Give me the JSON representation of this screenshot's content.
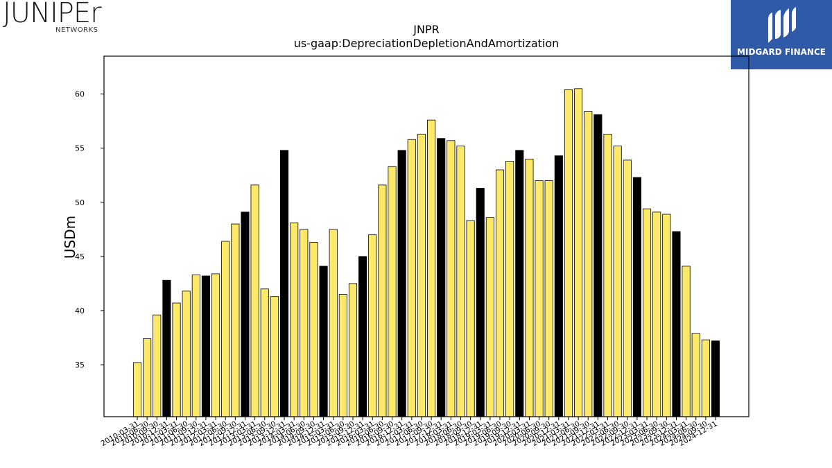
{
  "logos": {
    "left_brand": "JUNIPEr",
    "left_sub": "NETWORKS",
    "right_brand": "MIDGARD FINANCE"
  },
  "colors": {
    "bar_default": "#fce96a",
    "bar_highlight": "#000000",
    "bar_edge": "#000000",
    "logo_right_bg": "#2f5aa8"
  },
  "chart_data": {
    "type": "bar",
    "title": "JNPR",
    "subtitle": "us-gaap:DepreciationDepletionAndAmortization",
    "xlabel": "",
    "ylabel": "USDm",
    "ylim": [
      30.2,
      63.5
    ],
    "yticks": [
      35,
      40,
      45,
      50,
      55,
      60
    ],
    "grid": false,
    "categories": [
      "2010-03-31",
      "2010-06-30",
      "2010-09-30",
      "2010-12-31",
      "2011-03-31",
      "2011-06-30",
      "2011-09-30",
      "2011-12-31",
      "2012-03-31",
      "2012-06-30",
      "2012-09-30",
      "2012-12-31",
      "2013-03-31",
      "2013-06-30",
      "2013-09-30",
      "2013-12-31",
      "2014-03-31",
      "2014-06-30",
      "2014-09-30",
      "2014-12-31",
      "2015-03-31",
      "2015-06-30",
      "2015-09-30",
      "2015-12-31",
      "2016-03-31",
      "2016-06-30",
      "2016-09-30",
      "2016-12-31",
      "2017-03-31",
      "2017-06-30",
      "2017-09-30",
      "2017-12-31",
      "2018-03-31",
      "2018-06-30",
      "2018-09-30",
      "2018-12-31",
      "2019-03-31",
      "2019-06-30",
      "2019-09-30",
      "2019-12-31",
      "2020-03-31",
      "2020-06-30",
      "2020-09-30",
      "2020-12-31",
      "2021-03-31",
      "2021-06-30",
      "2021-09-30",
      "2021-12-31",
      "2022-03-31",
      "2022-06-30",
      "2022-09-30",
      "2022-12-31",
      "2023-03-31",
      "2023-06-30",
      "2023-09-30",
      "2023-12-31",
      "2024-03-31",
      "2024-06-30",
      "2024-09-30",
      "2024-12-31"
    ],
    "values": [
      35.2,
      37.4,
      39.6,
      42.8,
      40.7,
      41.8,
      43.3,
      43.2,
      43.4,
      46.4,
      48.0,
      49.1,
      51.6,
      42.0,
      41.3,
      54.8,
      48.1,
      47.5,
      46.3,
      44.1,
      47.5,
      41.5,
      42.5,
      45.0,
      47.0,
      51.6,
      53.3,
      54.8,
      55.8,
      56.3,
      57.6,
      55.9,
      55.7,
      55.2,
      48.3,
      51.3,
      48.6,
      53.0,
      53.8,
      54.8,
      54.0,
      52.0,
      52.0,
      54.3,
      60.4,
      60.5,
      58.4,
      58.1,
      56.3,
      55.2,
      53.9,
      52.3,
      49.4,
      49.1,
      48.9,
      47.3,
      44.1,
      37.9,
      37.3,
      37.2
    ],
    "highlighted": [
      false,
      false,
      false,
      true,
      false,
      false,
      false,
      true,
      false,
      false,
      false,
      true,
      false,
      false,
      false,
      true,
      false,
      false,
      false,
      true,
      false,
      false,
      false,
      true,
      false,
      false,
      false,
      true,
      false,
      false,
      false,
      true,
      false,
      false,
      false,
      true,
      false,
      false,
      false,
      true,
      false,
      false,
      false,
      true,
      false,
      false,
      false,
      true,
      false,
      false,
      false,
      true,
      false,
      false,
      false,
      true,
      false,
      false,
      false,
      true
    ]
  }
}
